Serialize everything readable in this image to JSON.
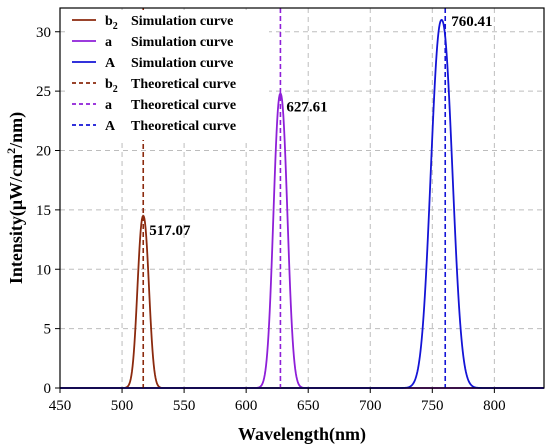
{
  "chart_data": {
    "type": "line",
    "title": "",
    "xlabel": "Wavelength(nm)",
    "ylabel_main": "Intensity(μW/cm",
    "ylabel_sup": "2",
    "ylabel_tail": "/nm)",
    "xlim": [
      450,
      840
    ],
    "ylim": [
      0,
      32
    ],
    "xticks": [
      "450",
      "500",
      "550",
      "600",
      "650",
      "700",
      "750",
      "800"
    ],
    "yticks": [
      "0",
      "5",
      "10",
      "15",
      "20",
      "25",
      "30"
    ],
    "grid": true,
    "legend_position": "top-left",
    "series": [
      {
        "name_main": "b",
        "name_sub": "2",
        "name_tail": "Simulation curve",
        "style": "solid",
        "color": "#8B2A0E",
        "peak_x": 517.07,
        "peak_y": 14.5,
        "sigma": 4.5
      },
      {
        "name_main": "a",
        "name_sub": "",
        "name_tail": "Simulation curve",
        "style": "solid",
        "color": "#8E1FD8",
        "peak_x": 627.61,
        "peak_y": 24.8,
        "sigma": 5.5
      },
      {
        "name_main": "A",
        "name_sub": "",
        "name_tail": "Simulation curve",
        "style": "solid",
        "color": "#1414D6",
        "peak_x": 757.5,
        "peak_y": 31.0,
        "sigma": 8.5
      },
      {
        "name_main": "b",
        "name_sub": "2",
        "name_tail": "Theoretical curve",
        "style": "dashed",
        "color": "#8B2A0E",
        "x": 517.07
      },
      {
        "name_main": "a",
        "name_sub": "",
        "name_tail": "Theoretical curve",
        "style": "dashed",
        "color": "#8E1FD8",
        "x": 627.61
      },
      {
        "name_main": "A",
        "name_sub": "",
        "name_tail": "Theoretical curve",
        "style": "dashed",
        "color": "#1414D6",
        "x": 760.41
      }
    ],
    "annotations": [
      {
        "text": "517.07",
        "x": 517.07,
        "y": 14.5
      },
      {
        "text": "627.61",
        "x": 627.61,
        "y": 24.8
      },
      {
        "text": "760.41",
        "x": 760.41,
        "y": 31.0
      }
    ]
  }
}
